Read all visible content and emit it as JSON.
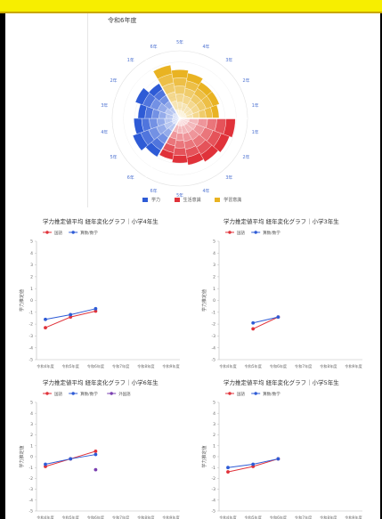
{
  "radar": {
    "title": "令和6年度",
    "labels_outer": [
      "6年",
      "5年",
      "4年",
      "3年",
      "2年",
      "1年",
      "1年",
      "2年",
      "3年",
      "4年",
      "5年",
      "6年",
      "6年",
      "5年",
      "4年",
      "3年",
      "2年",
      "1年"
    ],
    "legend": [
      "学力",
      "生活意識",
      "学習意識"
    ],
    "colors": {
      "gakuryoku": "#2e5bd6",
      "seikatsu": "#e0323a",
      "gakushu": "#e9b322"
    }
  },
  "chart_data": [
    {
      "type": "line",
      "title": "学力推定値平均 経年変化グラフ｜小学4年生",
      "ylabel": "学力推定値",
      "categories": [
        "令和4年度",
        "令和5年度",
        "令和6年度",
        "令和7年度",
        "令和8年度",
        "令和9年度"
      ],
      "ylim": [
        -5,
        5
      ],
      "yticks": [
        "5",
        "4",
        "3",
        "2",
        "1",
        "0",
        "-1",
        "-2",
        "-3",
        "-4",
        "-5"
      ],
      "legend": [
        "国語",
        "算数/数学"
      ],
      "series": [
        {
          "name": "国語",
          "color": "#e0323a",
          "values": [
            -2.3,
            -1.4,
            -0.9,
            null,
            null,
            null
          ]
        },
        {
          "name": "算数/数学",
          "color": "#2e5bd6",
          "values": [
            -1.6,
            -1.2,
            -0.7,
            null,
            null,
            null
          ]
        }
      ]
    },
    {
      "type": "line",
      "title": "学力推定値平均 経年変化グラフ｜小学3年生",
      "ylabel": "学力推定値",
      "categories": [
        "令和4年度",
        "令和5年度",
        "令和6年度",
        "令和7年度",
        "令和8年度",
        "令和9年度"
      ],
      "ylim": [
        -5,
        5
      ],
      "yticks": [
        "5",
        "4",
        "3",
        "2",
        "1",
        "0",
        "-1",
        "-2",
        "-3",
        "-4",
        "-5"
      ],
      "legend": [
        "国語",
        "算数/数学"
      ],
      "series": [
        {
          "name": "国語",
          "color": "#e0323a",
          "values": [
            null,
            -2.4,
            -1.4,
            null,
            null,
            null
          ]
        },
        {
          "name": "算数/数学",
          "color": "#2e5bd6",
          "values": [
            null,
            -1.9,
            -1.4,
            null,
            null,
            null
          ]
        }
      ]
    },
    {
      "type": "line",
      "title": "学力推定値平均 経年変化グラフ｜小学6年生",
      "ylabel": "学力推定値",
      "categories": [
        "令和4年度",
        "令和5年度",
        "令和6年度",
        "令和7年度",
        "令和8年度",
        "令和9年度"
      ],
      "ylim": [
        -5,
        5
      ],
      "yticks": [
        "5",
        "4",
        "3",
        "2",
        "1",
        "0",
        "-1",
        "-2",
        "-3",
        "-4",
        "-5"
      ],
      "legend": [
        "国語",
        "算数/数学",
        "外国語"
      ],
      "series": [
        {
          "name": "国語",
          "color": "#e0323a",
          "values": [
            -0.9,
            -0.2,
            0.5,
            null,
            null,
            null
          ]
        },
        {
          "name": "算数/数学",
          "color": "#2e5bd6",
          "values": [
            -0.7,
            -0.2,
            0.2,
            null,
            null,
            null
          ]
        },
        {
          "name": "外国語",
          "color": "#7a3fb0",
          "values": [
            null,
            null,
            -1.2,
            null,
            null,
            null
          ]
        }
      ]
    },
    {
      "type": "line",
      "title": "学力推定値平均 経年変化グラフ｜小学5年生",
      "ylabel": "学力推定値",
      "categories": [
        "令和4年度",
        "令和5年度",
        "令和6年度",
        "令和7年度",
        "令和8年度",
        "令和9年度"
      ],
      "ylim": [
        -5,
        5
      ],
      "yticks": [
        "5",
        "4",
        "3",
        "2",
        "1",
        "0",
        "-1",
        "-2",
        "-3",
        "-4",
        "-5"
      ],
      "legend": [
        "国語",
        "算数/数学"
      ],
      "series": [
        {
          "name": "国語",
          "color": "#e0323a",
          "values": [
            -1.4,
            -0.9,
            -0.2,
            null,
            null,
            null
          ]
        },
        {
          "name": "算数/数学",
          "color": "#2e5bd6",
          "values": [
            -1.0,
            -0.7,
            -0.2,
            null,
            null,
            null
          ]
        }
      ]
    }
  ]
}
